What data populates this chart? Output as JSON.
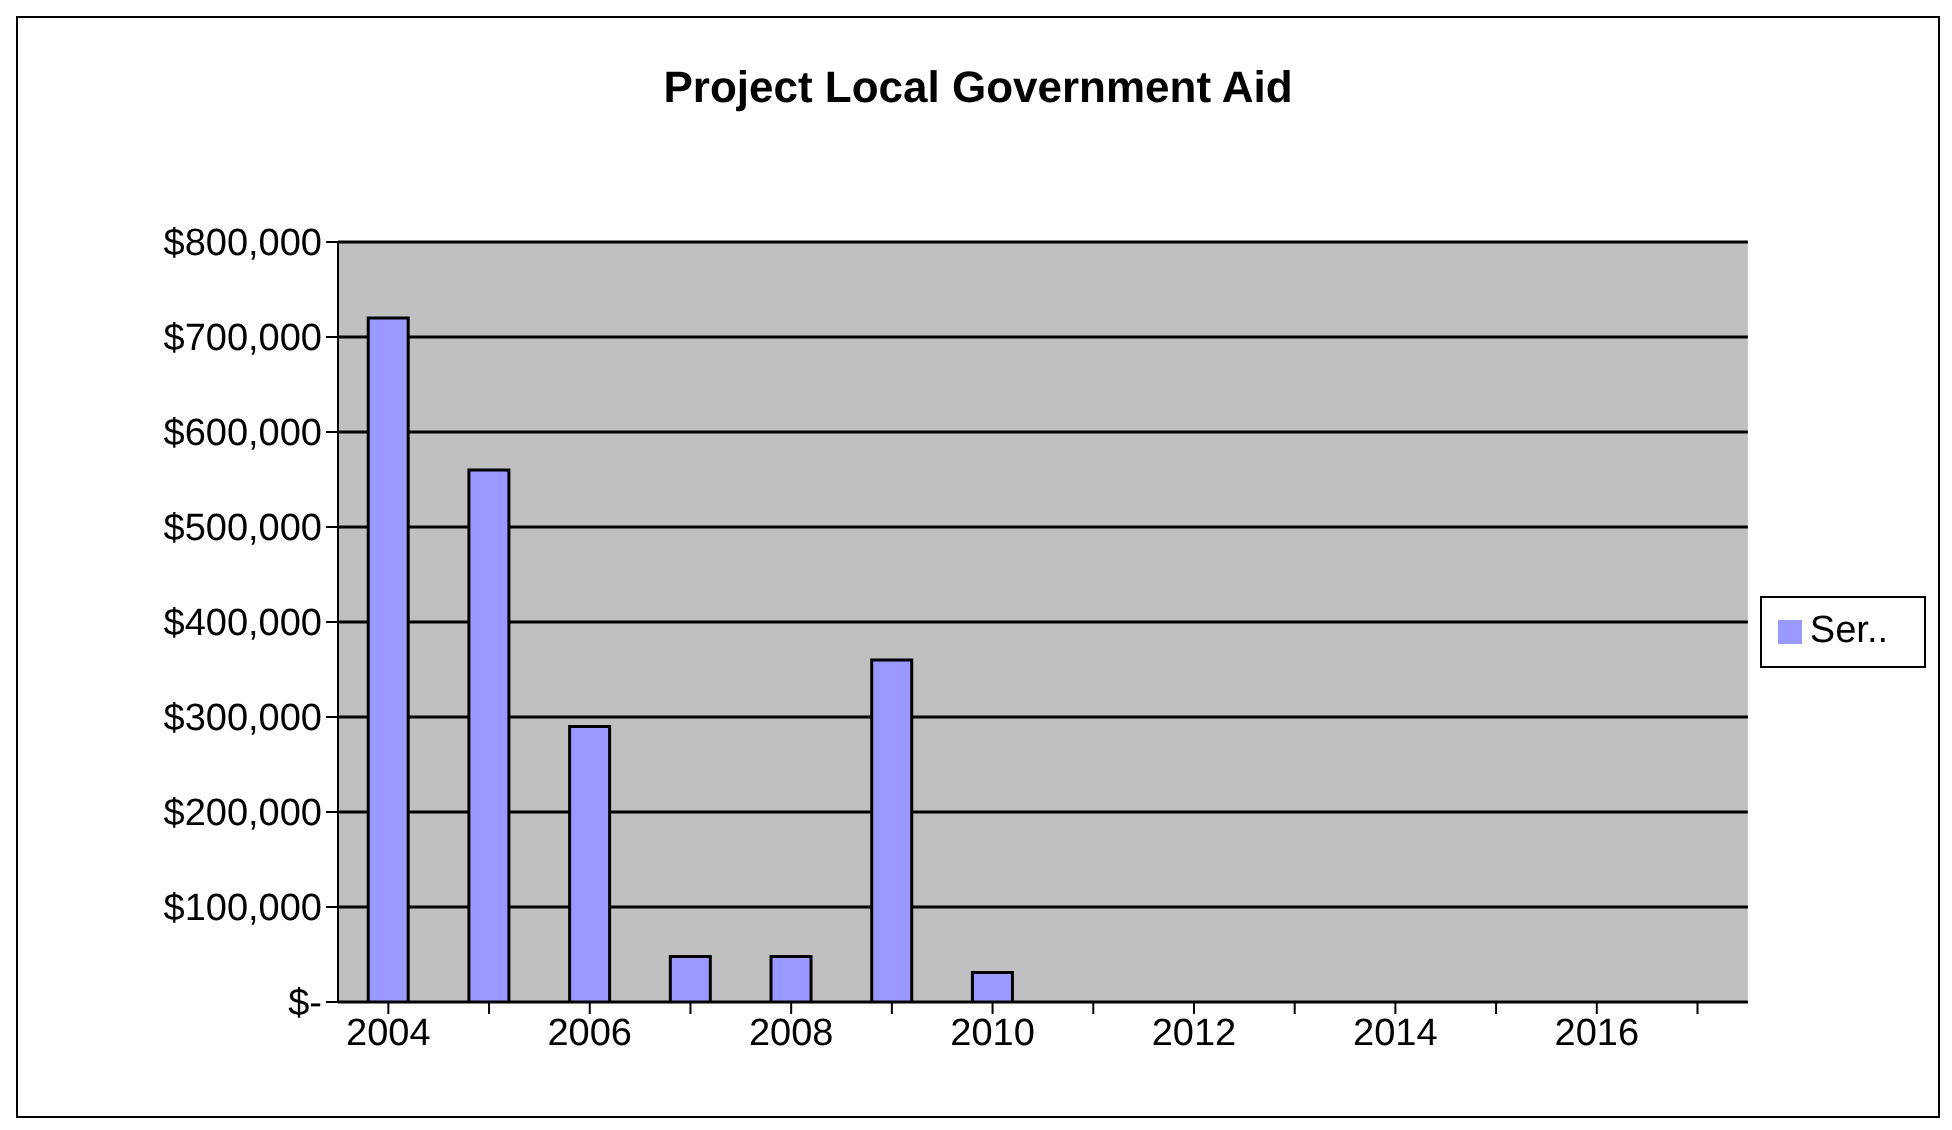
{
  "chart_data": {
    "type": "bar",
    "title": "Project Local Government Aid",
    "categories": [
      "2004",
      null,
      "2006",
      null,
      "2008",
      null,
      "2010",
      null,
      "2012",
      null,
      "2014",
      null,
      "2016",
      null
    ],
    "series": [
      {
        "name": "Ser..",
        "color": "#9999ff",
        "values": [
          720000,
          560000,
          290000,
          48000,
          48000,
          360000,
          31000,
          0,
          0,
          0,
          0,
          0,
          0,
          0
        ]
      }
    ],
    "ylim": [
      0,
      800000
    ],
    "yticks": [
      {
        "value": 0,
        "label": "$-"
      },
      {
        "value": 100000,
        "label": "$100,000"
      },
      {
        "value": 200000,
        "label": "$200,000"
      },
      {
        "value": 300000,
        "label": "$300,000"
      },
      {
        "value": 400000,
        "label": "$400,000"
      },
      {
        "value": 500000,
        "label": "$500,000"
      },
      {
        "value": 600000,
        "label": "$600,000"
      },
      {
        "value": 700000,
        "label": "$700,000"
      },
      {
        "value": 800000,
        "label": "$800,000"
      }
    ],
    "grid": "y",
    "legend": "right"
  }
}
